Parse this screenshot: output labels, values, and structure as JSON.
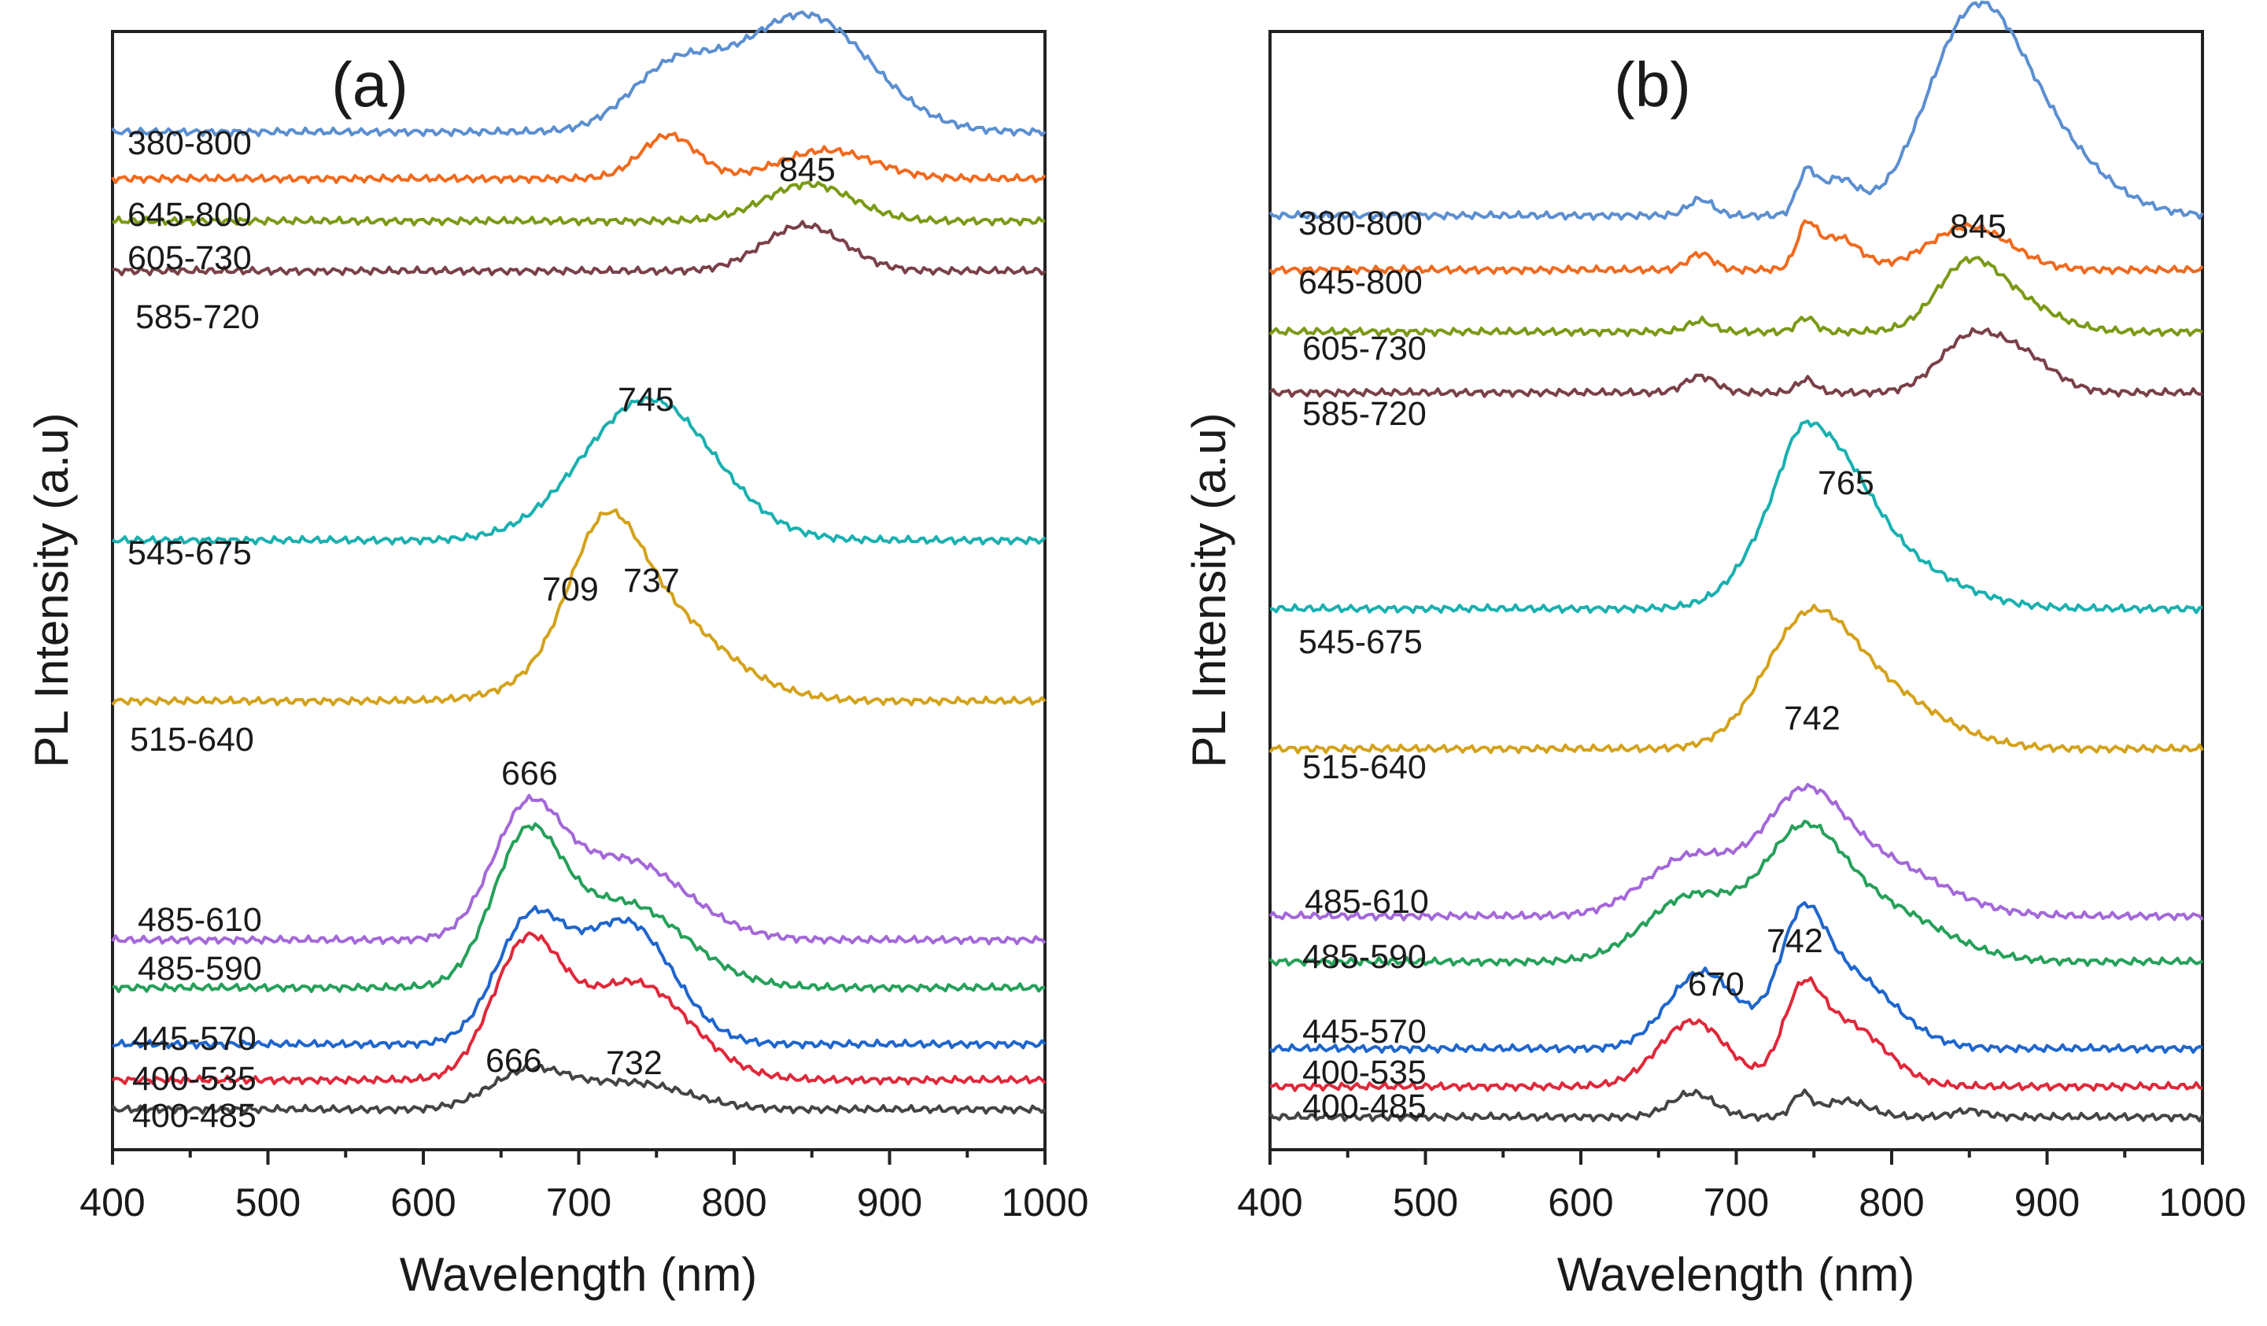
{
  "colors": {
    "380-800": "#5b8fd0",
    "645-800": "#f06a1e",
    "605-730": "#7a9a16",
    "585-720": "#7a4048",
    "545-675": "#1ab0b0",
    "515-640": "#d4a21a",
    "485-610": "#a468d8",
    "485-590": "#26a05a",
    "445-570": "#1f66cc",
    "400-535": "#e0283a",
    "400-485": "#444444"
  },
  "chart_data": [
    {
      "type": "line",
      "title": "(a)",
      "xlabel": "Wavelength (nm)",
      "ylabel": "PL Intensity (a.u)",
      "xlim": [
        400,
        1000
      ],
      "ylim": [
        0,
        100
      ],
      "xticks": [
        "400",
        "500",
        "600",
        "700",
        "800",
        "900",
        "1000"
      ],
      "series": [
        {
          "name": "380-800",
          "baseline": 92.2,
          "peaks": [
            [
              760,
              5.4,
              28
            ],
            [
              845,
              10.8,
              42
            ]
          ]
        },
        {
          "name": "645-800",
          "baseline": 87.9,
          "peaks": [
            [
              758,
              4.0,
              18
            ],
            [
              860,
              2.6,
              30
            ]
          ]
        },
        {
          "name": "605-730",
          "baseline": 84.0,
          "peaks": [
            [
              848,
              3.4,
              28
            ]
          ]
        },
        {
          "name": "585-720",
          "baseline": 79.4,
          "peaks": [
            [
              845,
              4.2,
              26
            ]
          ]
        },
        {
          "name": "545-675",
          "baseline": 54.6,
          "peaks": [
            [
              745,
              13.0,
              42
            ]
          ]
        },
        {
          "name": "515-640",
          "baseline": 39.8,
          "peaks": [
            [
              716,
              9.6,
              22
            ],
            [
              742,
              9.0,
              45
            ]
          ]
        },
        {
          "name": "485-610",
          "baseline": 17.8,
          "peaks": [
            [
              666,
              10.6,
              22
            ],
            [
              728,
              7.4,
              40
            ]
          ]
        },
        {
          "name": "485-590",
          "baseline": 13.4,
          "peaks": [
            [
              666,
              12.4,
              22
            ],
            [
              728,
              7.8,
              40
            ]
          ]
        },
        {
          "name": "445-570",
          "baseline": 8.2,
          "peaks": [
            [
              668,
              10.8,
              22
            ],
            [
              730,
              11.2,
              30
            ]
          ]
        },
        {
          "name": "400-535",
          "baseline": 4.9,
          "peaks": [
            [
              666,
              11.8,
              22
            ],
            [
              735,
              9.0,
              36
            ]
          ]
        },
        {
          "name": "400-485",
          "baseline": 2.2,
          "peaks": [
            [
              668,
              3.4,
              25
            ],
            [
              735,
              2.4,
              35
            ]
          ]
        }
      ],
      "annotations": [
        "845",
        "745",
        "709",
        "737",
        "666",
        "666",
        "732"
      ]
    },
    {
      "type": "line",
      "title": "(b)",
      "xlabel": "Wavelength (nm)",
      "ylabel": "PL Intensity (a.u)",
      "xlim": [
        400,
        1000
      ],
      "ylim": [
        0,
        100
      ],
      "xticks": [
        "400",
        "500",
        "600",
        "700",
        "800",
        "900",
        "1000"
      ],
      "series": [
        {
          "name": "380-800",
          "baseline": 84.5,
          "peaks": [
            [
              677,
              1.5,
              8
            ],
            [
              745,
              3.5,
              6
            ],
            [
              765,
              3.2,
              12
            ],
            [
              852,
              17.0,
              30
            ],
            [
              900,
              6.0,
              35
            ]
          ]
        },
        {
          "name": "645-800",
          "baseline": 79.5,
          "peaks": [
            [
              677,
              1.5,
              8
            ],
            [
              745,
              3.4,
              6
            ],
            [
              765,
              3.0,
              14
            ],
            [
              850,
              4.0,
              26
            ]
          ]
        },
        {
          "name": "605-730",
          "baseline": 73.8,
          "peaks": [
            [
              677,
              1.0,
              8
            ],
            [
              745,
              1.3,
              6
            ],
            [
              848,
              5.5,
              20
            ],
            [
              880,
              2.5,
              25
            ]
          ]
        },
        {
          "name": "585-720",
          "baseline": 68.2,
          "peaks": [
            [
              677,
              1.5,
              10
            ],
            [
              745,
              1.2,
              6
            ],
            [
              850,
              4.8,
              20
            ],
            [
              885,
              3.0,
              20
            ]
          ]
        },
        {
          "name": "545-675",
          "baseline": 48.3,
          "peaks": [
            [
              750,
              14.0,
              30
            ],
            [
              800,
              4.0,
              40
            ],
            [
              740,
              2.0,
              10
            ]
          ]
        },
        {
          "name": "515-640",
          "baseline": 35.4,
          "peaks": [
            [
              745,
              10.0,
              28
            ],
            [
              790,
              5.0,
              40
            ]
          ]
        },
        {
          "name": "485-610",
          "baseline": 20.0,
          "peaks": [
            [
              672,
              5.5,
              30
            ],
            [
              742,
              9.0,
              25
            ],
            [
              790,
              5.0,
              40
            ]
          ]
        },
        {
          "name": "485-590",
          "baseline": 15.8,
          "peaks": [
            [
              672,
              6.0,
              30
            ],
            [
              742,
              9.8,
              25
            ],
            [
              790,
              5.0,
              40
            ]
          ]
        },
        {
          "name": "445-570",
          "baseline": 7.8,
          "peaks": [
            [
              678,
              7.0,
              22
            ],
            [
              742,
              8.5,
              14
            ],
            [
              770,
              7.0,
              30
            ]
          ]
        },
        {
          "name": "400-535",
          "baseline": 4.3,
          "peaks": [
            [
              672,
              6.0,
              22
            ],
            [
              742,
              6.5,
              12
            ],
            [
              770,
              5.8,
              25
            ]
          ]
        },
        {
          "name": "400-485",
          "baseline": 1.5,
          "peaks": [
            [
              672,
              2.2,
              14
            ],
            [
              742,
              2.0,
              6
            ],
            [
              770,
              1.5,
              15
            ],
            [
              850,
              0.6,
              10
            ]
          ]
        }
      ],
      "annotations": [
        "845",
        "765",
        "742",
        "742",
        "670"
      ]
    }
  ]
}
